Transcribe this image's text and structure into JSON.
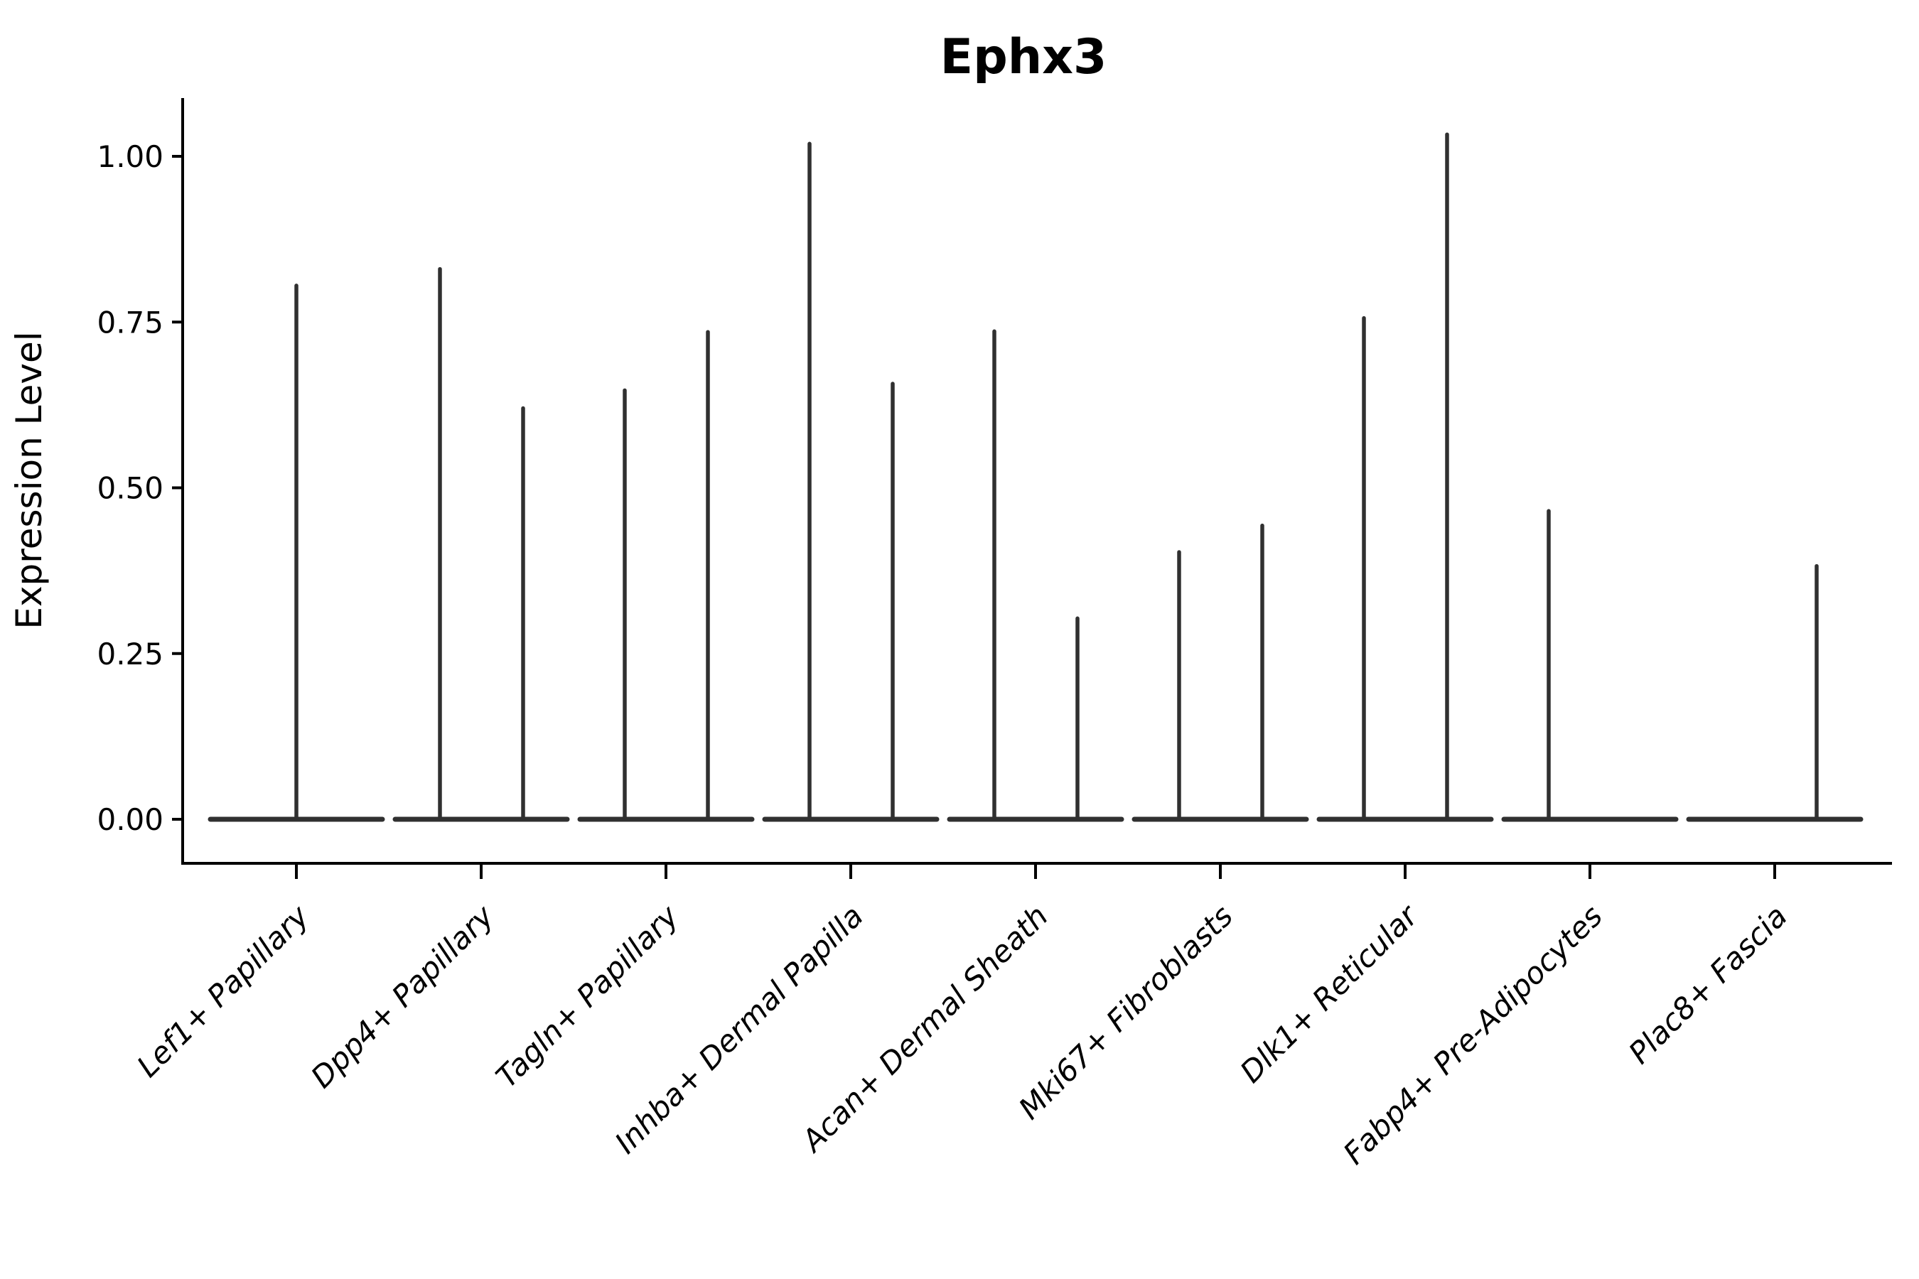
{
  "chart_data": {
    "type": "violin",
    "title": "Ephx3",
    "xlabel": "",
    "ylabel": "Expression Level",
    "ylim": [
      0,
      1.09
    ],
    "grid": false,
    "legend_position": "none",
    "colors": {
      "violin_stroke": "#303030",
      "axis": "#000000",
      "text": "#000000",
      "background": "#ffffff"
    },
    "yticks": [
      {
        "value": 1.0,
        "label": "1.00"
      },
      {
        "value": 0.75,
        "label": "0.75"
      },
      {
        "value": 0.5,
        "label": "0.50"
      },
      {
        "value": 0.25,
        "label": "0.25"
      },
      {
        "value": 0.0,
        "label": "0.00"
      }
    ],
    "categories": [
      {
        "label": "Lef1+ Papillary",
        "violins": [
          {
            "position": "center",
            "max": 0.805
          }
        ]
      },
      {
        "label": "Dpp4+ Papillary",
        "violins": [
          {
            "position": "left",
            "max": 0.83
          },
          {
            "position": "right",
            "max": 0.62
          }
        ]
      },
      {
        "label": "Tagln+ Papillary",
        "violins": [
          {
            "position": "left",
            "max": 0.647
          },
          {
            "position": "right",
            "max": 0.735
          }
        ]
      },
      {
        "label": "Inhba+ Dermal Papilla",
        "violins": [
          {
            "position": "left",
            "max": 1.019
          },
          {
            "position": "right",
            "max": 0.657
          }
        ]
      },
      {
        "label": "Acan+ Dermal Sheath",
        "violins": [
          {
            "position": "left",
            "max": 0.736
          },
          {
            "position": "right",
            "max": 0.303
          }
        ]
      },
      {
        "label": "Mki67+ Fibroblasts",
        "violins": [
          {
            "position": "left",
            "max": 0.403
          },
          {
            "position": "right",
            "max": 0.443
          }
        ]
      },
      {
        "label": "Dlk1+ Reticular",
        "violins": [
          {
            "position": "left",
            "max": 0.756
          },
          {
            "position": "right",
            "max": 1.033
          }
        ]
      },
      {
        "label": "Fabp4+ Pre-Adipocytes",
        "violins": [
          {
            "position": "left",
            "max": 0.465
          }
        ]
      },
      {
        "label": "Plac8+ Fascia",
        "violins": [
          {
            "position": "right",
            "max": 0.382
          }
        ]
      }
    ]
  }
}
